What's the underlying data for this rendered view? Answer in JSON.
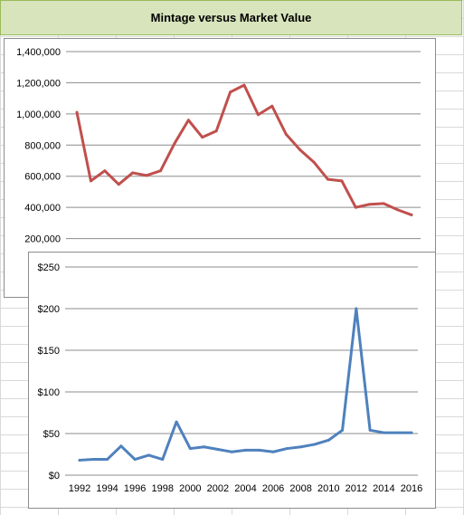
{
  "header": {
    "title": "Mintage versus Market Value"
  },
  "chart_data": [
    {
      "type": "line",
      "title": "",
      "ylim": [
        0,
        1400000
      ],
      "yticks": [
        "1,400,000",
        "1,200,000",
        "1,000,000",
        "800,000",
        "600,000",
        "400,000",
        "200,000"
      ],
      "grid": true,
      "series": [
        {
          "color": "#c0504d",
          "x": [
            1992,
            1993,
            1994,
            1995,
            1996,
            1997,
            1998,
            1999,
            2000,
            2001,
            2002,
            2003,
            2004,
            2005,
            2006,
            2007,
            2008,
            2009,
            2010,
            2011,
            2012,
            2013,
            2014,
            2015,
            2016
          ],
          "values": [
            1010000,
            570000,
            635000,
            548000,
            622000,
            605000,
            635000,
            810000,
            960000,
            850000,
            890000,
            1140000,
            1185000,
            995000,
            1050000,
            870000,
            770000,
            690000,
            580000,
            570000,
            400000,
            420000,
            425000,
            385000,
            352000
          ]
        }
      ]
    },
    {
      "type": "line",
      "title": "",
      "ylim": [
        0,
        250
      ],
      "yticks": [
        "$250",
        "$200",
        "$150",
        "$100",
        "$50",
        "$0"
      ],
      "xticks": [
        "1992",
        "1994",
        "1996",
        "1998",
        "2000",
        "2002",
        "2004",
        "2006",
        "2008",
        "2010",
        "2012",
        "2014",
        "2016"
      ],
      "grid": true,
      "series": [
        {
          "color": "#4f81bd",
          "x": [
            1992,
            1993,
            1994,
            1995,
            1996,
            1997,
            1998,
            1999,
            2000,
            2001,
            2002,
            2003,
            2004,
            2005,
            2006,
            2007,
            2008,
            2009,
            2010,
            2011,
            2012,
            2013,
            2014,
            2015,
            2016
          ],
          "values": [
            18,
            19,
            19,
            35,
            19,
            24,
            19,
            64,
            32,
            34,
            31,
            28,
            30,
            30,
            28,
            32,
            34,
            37,
            42,
            54,
            200,
            54,
            51,
            51,
            51
          ]
        }
      ]
    }
  ]
}
